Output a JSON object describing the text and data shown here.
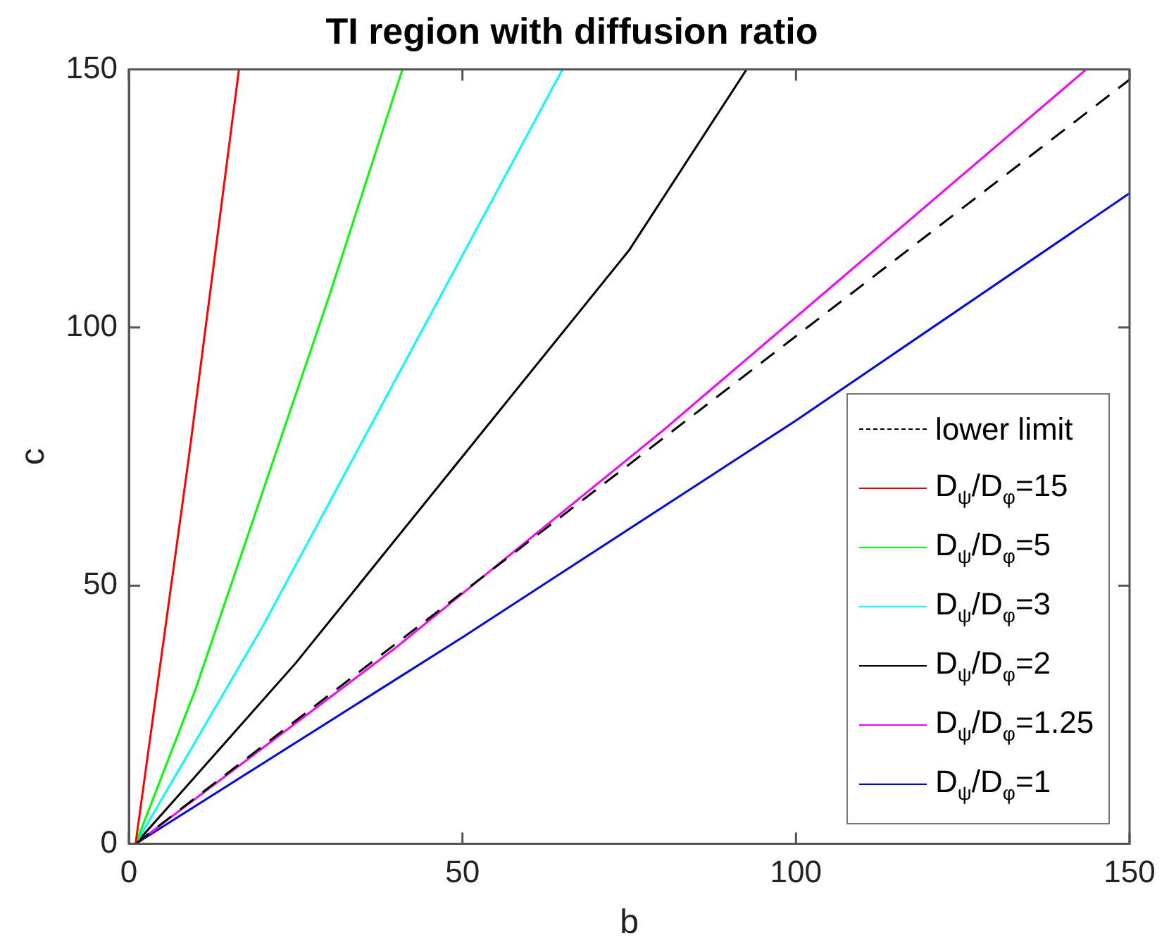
{
  "chart_data": {
    "type": "line",
    "title": "TI region with diffusion ratio",
    "xlabel": "b",
    "ylabel": "c",
    "xlim": [
      0,
      150
    ],
    "ylim": [
      0,
      150
    ],
    "xticks": [
      0,
      50,
      100,
      150
    ],
    "yticks": [
      0,
      50,
      100,
      150
    ],
    "grid": false,
    "legend": "bottom right",
    "marker": "none",
    "series": [
      {
        "name": "lower limit",
        "color": "#000000",
        "line_style": "dashed",
        "x": [
          1,
          150
        ],
        "values": [
          0,
          148
        ]
      },
      {
        "name": "D$_{ψ}$/D$_{φ}$=15",
        "color": "#ff0000",
        "x": [
          1,
          9,
          16.5
        ],
        "values": [
          0,
          75,
          150
        ]
      },
      {
        "name": "D$_{ψ}$/D$_{φ}$=5",
        "color": "#00ff00",
        "x": [
          1,
          10,
          20,
          30,
          41
        ],
        "values": [
          0,
          30,
          68,
          106,
          150
        ]
      },
      {
        "name": "D$_{ψ}$/D$_{φ}$=3",
        "color": "#00ffff",
        "x": [
          1,
          20,
          40,
          65
        ],
        "values": [
          0,
          42,
          90,
          150
        ]
      },
      {
        "name": "D$_{ψ}$/D$_{φ}$=2",
        "color": "#000000",
        "x": [
          1,
          25,
          50,
          75,
          92.6
        ],
        "values": [
          0,
          35,
          75,
          115,
          150
        ]
      },
      {
        "name": "D$_{ψ}$/D$_{φ}$=1.25",
        "color": "#ff00ff",
        "x": [
          1,
          40,
          80,
          143.5
        ],
        "values": [
          0,
          38,
          80,
          150
        ]
      },
      {
        "name": "D$_{ψ}$/D$_{φ}$=1",
        "color": "#0000ff",
        "x": [
          1,
          50,
          100,
          150
        ],
        "values": [
          0,
          40,
          82,
          126
        ]
      }
    ]
  }
}
